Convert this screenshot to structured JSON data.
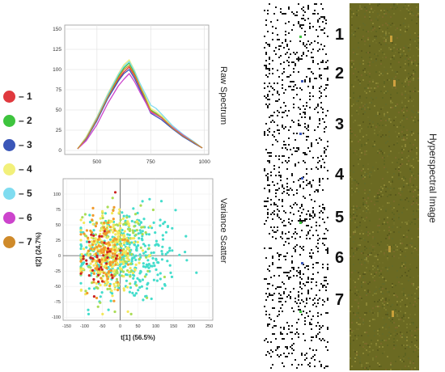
{
  "legend": [
    {
      "label": "– 1",
      "color": "#e0393e"
    },
    {
      "label": "– 2",
      "color": "#3ec43e"
    },
    {
      "label": "– 3",
      "color": "#3a56b8"
    },
    {
      "label": "– 4",
      "color": "#f2f07a"
    },
    {
      "label": "– 5",
      "color": "#7fdcf0"
    },
    {
      "label": "– 6",
      "color": "#cc44cc"
    },
    {
      "label": "– 7",
      "color": "#cf8a2a"
    }
  ],
  "panel_labels": {
    "raw_spectrum": "Raw Spectrum",
    "variance_scatter": "Variance Scatter",
    "hyperspectral_image": "Hyperspectral Image"
  },
  "strip_numbers": [
    "1",
    "2",
    "3",
    "4",
    "5",
    "6",
    "7"
  ],
  "chart_data": [
    {
      "type": "line",
      "x": [
        410,
        450,
        500,
        550,
        600,
        625,
        650,
        675,
        700,
        725,
        750,
        775,
        800,
        850,
        900,
        950,
        990
      ],
      "series": [
        {
          "color": "#e0393e",
          "values": [
            2,
            15,
            38,
            65,
            88,
            97,
            103,
            92,
            78,
            63,
            48,
            44,
            40,
            28,
            18,
            10,
            3
          ]
        },
        {
          "color": "#3ec43e",
          "values": [
            2,
            16,
            40,
            68,
            92,
            102,
            108,
            96,
            80,
            66,
            50,
            46,
            41,
            29,
            19,
            10,
            3
          ]
        },
        {
          "color": "#3a56b8",
          "values": [
            2,
            14,
            37,
            64,
            86,
            95,
            100,
            89,
            75,
            61,
            46,
            42,
            38,
            27,
            17,
            9,
            3
          ]
        },
        {
          "color": "#f2f07a",
          "values": [
            2,
            17,
            42,
            70,
            95,
            106,
            112,
            99,
            82,
            68,
            52,
            48,
            43,
            30,
            20,
            11,
            3
          ]
        },
        {
          "color": "#7fdcf0",
          "values": [
            2,
            16,
            41,
            69,
            94,
            104,
            110,
            98,
            83,
            70,
            56,
            52,
            45,
            31,
            20,
            11,
            3
          ]
        },
        {
          "color": "#cc44cc",
          "values": [
            2,
            12,
            32,
            58,
            80,
            88,
            95,
            85,
            72,
            60,
            47,
            44,
            40,
            29,
            19,
            10,
            3
          ]
        },
        {
          "color": "#cf8a2a",
          "values": [
            2,
            15,
            39,
            66,
            90,
            100,
            105,
            94,
            79,
            64,
            49,
            45,
            41,
            28,
            18,
            10,
            3
          ]
        }
      ],
      "xticks": [
        500,
        750,
        1000
      ],
      "yticks": [
        0,
        25,
        50,
        75,
        100,
        125,
        150
      ],
      "xlim": [
        350,
        1020
      ],
      "ylim": [
        -5,
        155
      ],
      "grid": true
    },
    {
      "type": "scatter",
      "xlabel": "t[1] (56.5%)",
      "ylabel": "t[2] (24.7%)",
      "xticks": [
        -150,
        -100,
        -50,
        0,
        50,
        100,
        150,
        200,
        250
      ],
      "yticks": [
        -100,
        -75,
        -50,
        -25,
        0,
        25,
        50,
        75,
        100
      ],
      "xlim": [
        -160,
        260
      ],
      "ylim": [
        -105,
        125
      ],
      "grid": true,
      "groups": [
        {
          "color": "#44ddcc",
          "n": 360,
          "cx": 20,
          "cy": 0,
          "sx": 70,
          "sy": 38
        },
        {
          "color": "#aadd55",
          "n": 180,
          "cx": -15,
          "cy": 5,
          "sx": 50,
          "sy": 35
        },
        {
          "color": "#f4e85a",
          "n": 220,
          "cx": -30,
          "cy": 5,
          "sx": 38,
          "sy": 32
        },
        {
          "color": "#f29a2a",
          "n": 120,
          "cx": -45,
          "cy": 5,
          "sx": 30,
          "sy": 30
        },
        {
          "color": "#cc2222",
          "n": 40,
          "cx": -55,
          "cy": 0,
          "sx": 25,
          "sy": 30
        }
      ]
    }
  ]
}
